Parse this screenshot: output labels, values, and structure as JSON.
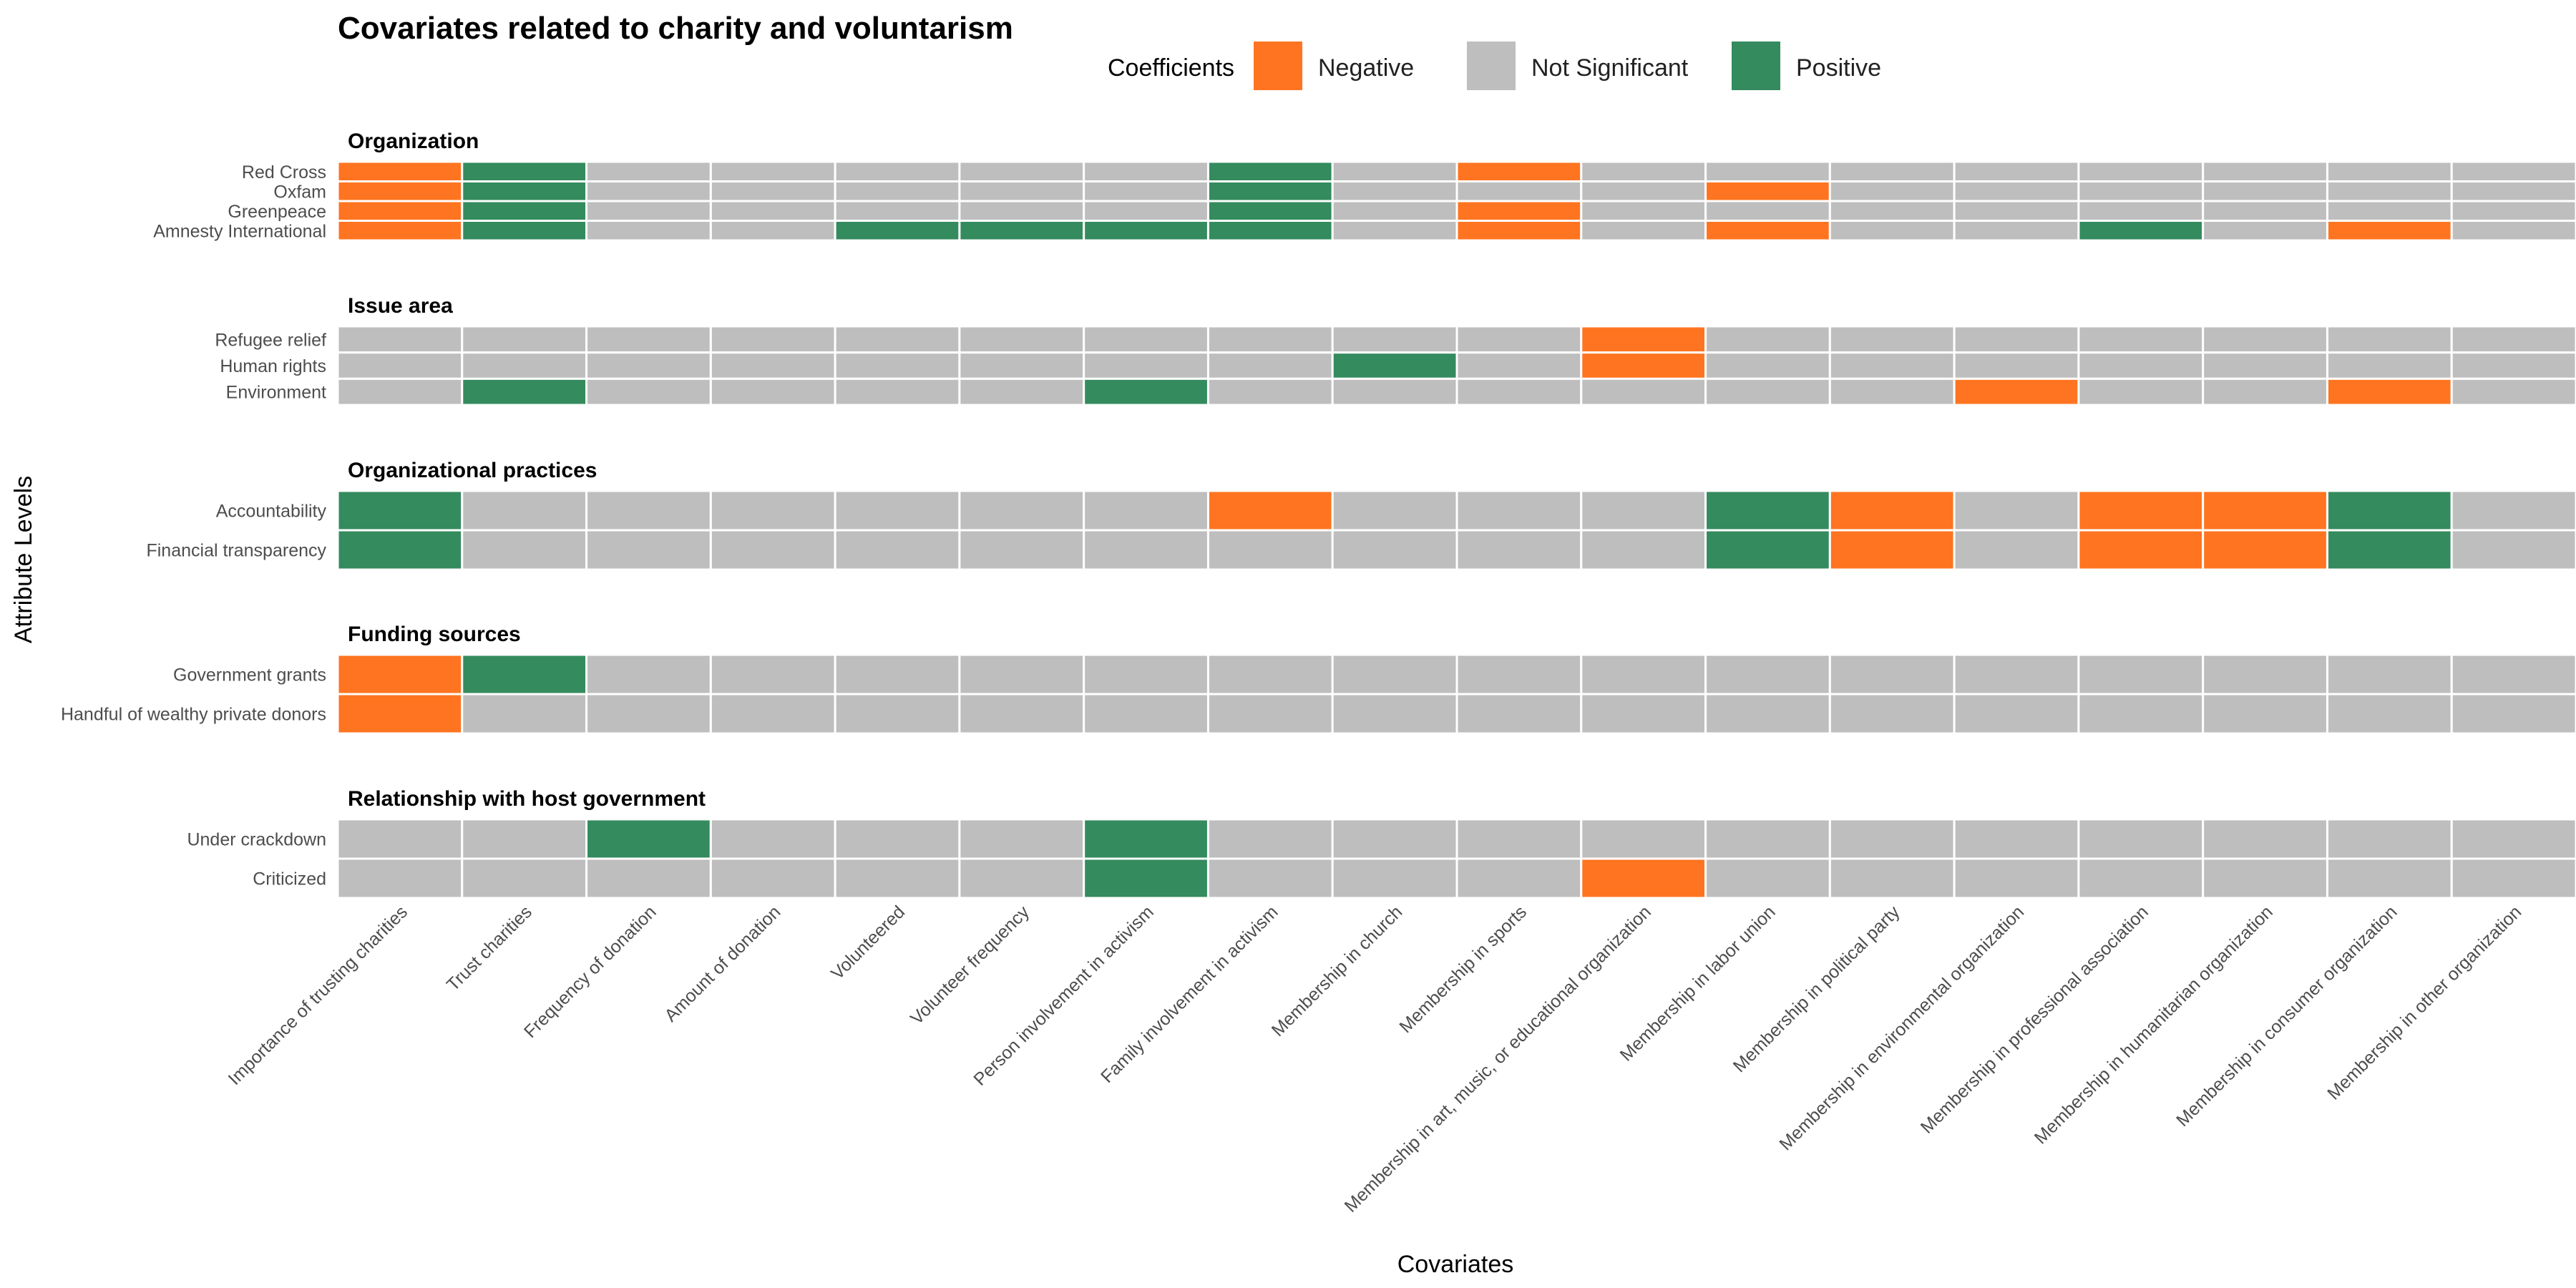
{
  "chart_data": {
    "type": "heatmap",
    "title": "Covariates related to charity and voluntarism",
    "xlabel": "Covariates",
    "ylabel": "Attribute Levels",
    "legend": {
      "title": "Coefficients",
      "placement": "top",
      "entries": [
        {
          "key": "N",
          "label": "Negative",
          "color": "#FF7420"
        },
        {
          "key": "S",
          "label": "Not Significant",
          "color": "#BEBEBE"
        },
        {
          "key": "P",
          "label": "Positive",
          "color": "#348B5E"
        }
      ]
    },
    "grid_line_color": "#ffffff",
    "columns": [
      "Importance of trusting charities",
      "Trust charities",
      "Frequency of donation",
      "Amount of donation",
      "Volunteered",
      "Volunteer frequency",
      "Person involvement in activism",
      "Family involvement in activism",
      "Membership in church",
      "Membership in sports",
      "Membership in art, music, or educational organization",
      "Membership in labor union",
      "Membership in political party",
      "Membership in environmental organization",
      "Membership in professional association",
      "Membership in humanitarian organization",
      "Membership in consumer organization",
      "Membership in other organization"
    ],
    "facets": [
      {
        "title": "Organization",
        "rows": [
          {
            "label": "Red Cross",
            "values": [
              "N",
              "P",
              "S",
              "S",
              "S",
              "S",
              "S",
              "P",
              "S",
              "N",
              "S",
              "S",
              "S",
              "S",
              "S",
              "S",
              "S",
              "S"
            ]
          },
          {
            "label": "Oxfam",
            "values": [
              "N",
              "P",
              "S",
              "S",
              "S",
              "S",
              "S",
              "P",
              "S",
              "S",
              "S",
              "N",
              "S",
              "S",
              "S",
              "S",
              "S",
              "S"
            ]
          },
          {
            "label": "Greenpeace",
            "values": [
              "N",
              "P",
              "S",
              "S",
              "S",
              "S",
              "S",
              "P",
              "S",
              "N",
              "S",
              "S",
              "S",
              "S",
              "S",
              "S",
              "S",
              "S"
            ]
          },
          {
            "label": "Amnesty International",
            "values": [
              "N",
              "P",
              "S",
              "S",
              "P",
              "P",
              "P",
              "P",
              "S",
              "N",
              "S",
              "N",
              "S",
              "S",
              "P",
              "S",
              "N",
              "S"
            ]
          }
        ]
      },
      {
        "title": "Issue area",
        "rows": [
          {
            "label": "Refugee relief",
            "values": [
              "S",
              "S",
              "S",
              "S",
              "S",
              "S",
              "S",
              "S",
              "S",
              "S",
              "N",
              "S",
              "S",
              "S",
              "S",
              "S",
              "S",
              "S"
            ]
          },
          {
            "label": "Human rights",
            "values": [
              "S",
              "S",
              "S",
              "S",
              "S",
              "S",
              "S",
              "S",
              "P",
              "S",
              "N",
              "S",
              "S",
              "S",
              "S",
              "S",
              "S",
              "S"
            ]
          },
          {
            "label": "Environment",
            "values": [
              "S",
              "P",
              "S",
              "S",
              "S",
              "S",
              "P",
              "S",
              "S",
              "S",
              "S",
              "S",
              "S",
              "N",
              "S",
              "S",
              "N",
              "S"
            ]
          }
        ]
      },
      {
        "title": "Organizational practices",
        "rows": [
          {
            "label": "Accountability",
            "values": [
              "P",
              "S",
              "S",
              "S",
              "S",
              "S",
              "S",
              "N",
              "S",
              "S",
              "S",
              "P",
              "N",
              "S",
              "N",
              "N",
              "P",
              "S"
            ]
          },
          {
            "label": "Financial transparency",
            "values": [
              "P",
              "S",
              "S",
              "S",
              "S",
              "S",
              "S",
              "S",
              "S",
              "S",
              "S",
              "P",
              "N",
              "S",
              "N",
              "N",
              "P",
              "S"
            ]
          }
        ]
      },
      {
        "title": "Funding sources",
        "rows": [
          {
            "label": "Government grants",
            "values": [
              "N",
              "P",
              "S",
              "S",
              "S",
              "S",
              "S",
              "S",
              "S",
              "S",
              "S",
              "S",
              "S",
              "S",
              "S",
              "S",
              "S",
              "S"
            ]
          },
          {
            "label": "Handful of wealthy private donors",
            "values": [
              "N",
              "S",
              "S",
              "S",
              "S",
              "S",
              "S",
              "S",
              "S",
              "S",
              "S",
              "S",
              "S",
              "S",
              "S",
              "S",
              "S",
              "S"
            ]
          }
        ]
      },
      {
        "title": "Relationship with host government",
        "rows": [
          {
            "label": "Under crackdown",
            "values": [
              "S",
              "S",
              "P",
              "S",
              "S",
              "S",
              "P",
              "S",
              "S",
              "S",
              "S",
              "S",
              "S",
              "S",
              "S",
              "S",
              "S",
              "S"
            ]
          },
          {
            "label": "Criticized",
            "values": [
              "S",
              "S",
              "S",
              "S",
              "S",
              "S",
              "P",
              "S",
              "S",
              "S",
              "N",
              "S",
              "S",
              "S",
              "S",
              "S",
              "S",
              "S"
            ]
          }
        ]
      }
    ]
  }
}
